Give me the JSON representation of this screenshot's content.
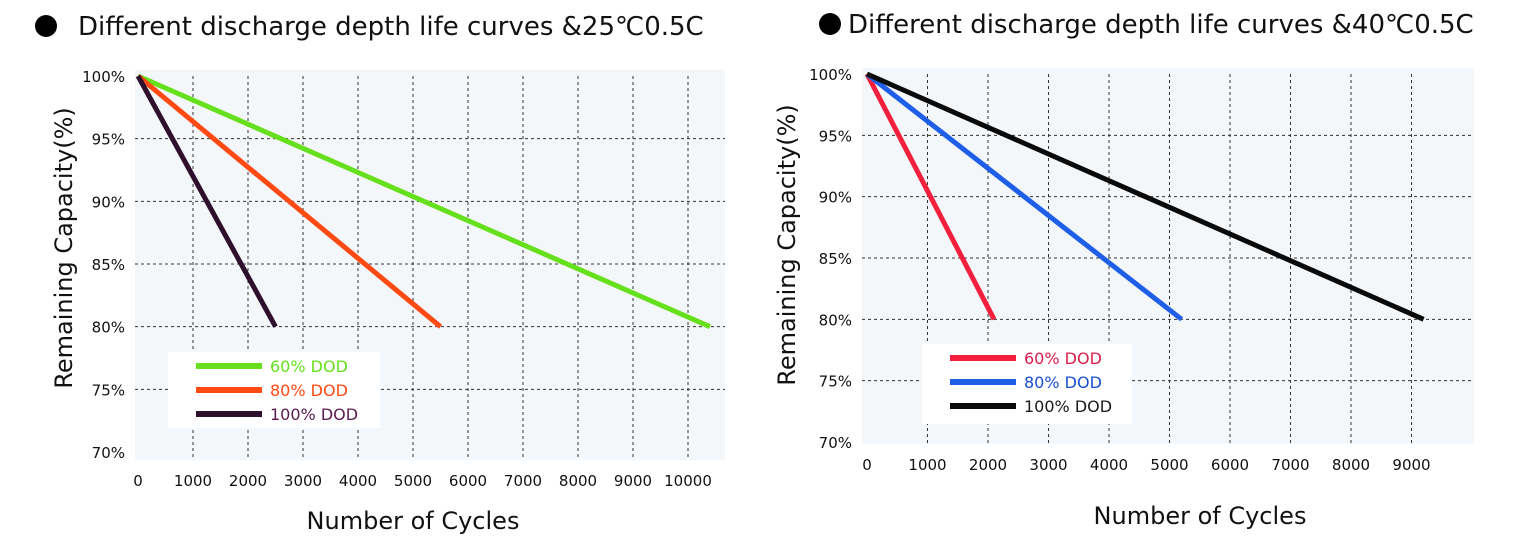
{
  "chart_data": [
    {
      "type": "line",
      "title": "Different discharge depth life curves &25℃0.5C",
      "xlabel": "Number of Cycles",
      "ylabel": "Remaining Capacity(%)",
      "xlim": [
        0,
        10500
      ],
      "ylim": [
        70,
        100
      ],
      "x_ticks": [
        "0",
        "1000",
        "2000",
        "3000",
        "4000",
        "5000",
        "6000",
        "7000",
        "8000",
        "9000",
        "10000"
      ],
      "y_ticks": [
        "100%",
        "95%",
        "90%",
        "85%",
        "80%",
        "75%",
        "70%"
      ],
      "grid": true,
      "legend_position": "bottom-left",
      "series": [
        {
          "name": "60% DOD",
          "color": "#66e01c",
          "points": [
            [
              0,
              100
            ],
            [
              10400,
              80
            ]
          ]
        },
        {
          "name": "80% DOD",
          "color": "#ff4a14",
          "points": [
            [
              0,
              100
            ],
            [
              5500,
              80
            ]
          ]
        },
        {
          "name": "100% DOD",
          "color": "#2e0f2c",
          "label_color": "#5a1a50",
          "points": [
            [
              0,
              100
            ],
            [
              2500,
              80
            ]
          ]
        }
      ]
    },
    {
      "type": "line",
      "title": "Different discharge depth life curves &40℃0.5C",
      "xlabel": "Number of Cycles",
      "ylabel": "Remaining Capacity(%)",
      "xlim": [
        0,
        10000
      ],
      "ylim": [
        70,
        100
      ],
      "x_ticks": [
        "0",
        "1000",
        "2000",
        "3000",
        "4000",
        "5000",
        "6000",
        "7000",
        "8000",
        "9000"
      ],
      "y_ticks": [
        "100%",
        "95%",
        "90%",
        "85%",
        "80%",
        "75%",
        "70%"
      ],
      "grid": true,
      "legend_position": "bottom-left",
      "series": [
        {
          "name": "60% DOD",
          "color": "#f2203c",
          "label_color": "#d81e4a",
          "points": [
            [
              0,
              100
            ],
            [
              2100,
              80
            ]
          ]
        },
        {
          "name": "80% DOD",
          "color": "#1f5fe8",
          "label_color": "#1a4fd0",
          "points": [
            [
              0,
              100
            ],
            [
              5200,
              80
            ]
          ]
        },
        {
          "name": "100% DOD",
          "color": "#0a0a0a",
          "label_color": "#1a1a1a",
          "points": [
            [
              0,
              100
            ],
            [
              9200,
              80
            ]
          ]
        }
      ]
    }
  ]
}
